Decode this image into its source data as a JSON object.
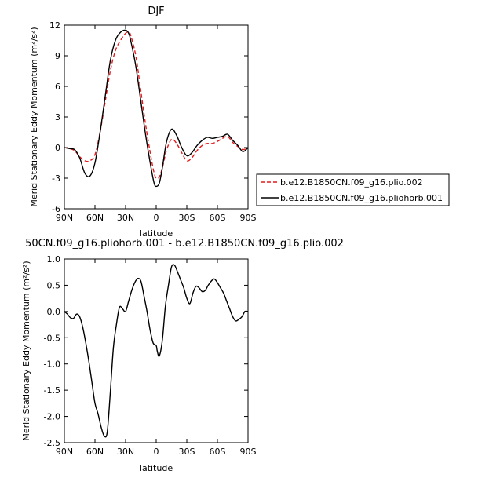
{
  "chart_data": [
    {
      "type": "line",
      "title": "DJF",
      "xlabel": "latitude",
      "ylabel": "Merid Stationary Eddy Momentum (m²/s²)",
      "x_tick_labels": [
        "90N",
        "60N",
        "30N",
        "0",
        "30S",
        "60S",
        "90S"
      ],
      "x_tick_values": [
        90,
        60,
        30,
        0,
        -30,
        -60,
        -90
      ],
      "xlim": [
        90,
        -90
      ],
      "ylim": [
        -6,
        12
      ],
      "y_ticks": [
        -6,
        -3,
        0,
        3,
        6,
        9,
        12
      ],
      "legend_position": "right",
      "series": [
        {
          "name": "b.e12.B1850CN.f09_g16.plio.002",
          "color": "#e41a1c",
          "style": "dashed",
          "x": [
            90,
            85,
            80,
            75,
            70,
            65,
            60,
            55,
            50,
            45,
            40,
            35,
            30,
            27,
            25,
            20,
            15,
            10,
            5,
            2,
            0,
            -3,
            -6,
            -10,
            -15,
            -20,
            -25,
            -30,
            -35,
            -40,
            -45,
            -50,
            -55,
            -60,
            -65,
            -70,
            -75,
            -80,
            -85,
            -90
          ],
          "y": [
            0,
            -0.1,
            -0.3,
            -0.9,
            -1.3,
            -1.3,
            -0.7,
            1.5,
            4.5,
            7.5,
            9.5,
            10.5,
            11.2,
            11.3,
            11.0,
            9.0,
            5.5,
            2.0,
            -1.0,
            -2.5,
            -3.0,
            -2.9,
            -2.0,
            -0.3,
            0.8,
            0.4,
            -0.5,
            -1.3,
            -1.0,
            -0.3,
            0.2,
            0.4,
            0.4,
            0.6,
            0.9,
            1.1,
            0.5,
            0.1,
            -0.2,
            0
          ]
        },
        {
          "name": "b.e12.B1850CN.f09_g16.pliohorb.001",
          "color": "#000000",
          "style": "solid",
          "x": [
            90,
            85,
            80,
            75,
            70,
            65,
            60,
            55,
            50,
            45,
            40,
            35,
            30,
            27,
            25,
            20,
            15,
            10,
            5,
            2,
            0,
            -3,
            -6,
            -10,
            -15,
            -20,
            -25,
            -30,
            -35,
            -40,
            -45,
            -50,
            -55,
            -60,
            -65,
            -70,
            -75,
            -80,
            -85,
            -90
          ],
          "y": [
            0,
            -0.1,
            -0.2,
            -1.0,
            -2.5,
            -2.8,
            -1.5,
            1.5,
            5.0,
            8.5,
            10.5,
            11.3,
            11.5,
            11.2,
            10.5,
            8.0,
            4.5,
            1.0,
            -2.0,
            -3.5,
            -3.8,
            -3.5,
            -2.0,
            0.5,
            1.8,
            1.2,
            0.0,
            -0.8,
            -0.5,
            0.2,
            0.7,
            1.0,
            0.9,
            1.0,
            1.1,
            1.3,
            0.7,
            0.2,
            -0.4,
            0
          ]
        }
      ]
    },
    {
      "type": "line",
      "title": "50CN.f09_g16.pliohorb.001 - b.e12.B1850CN.f09_g16.plio.002",
      "xlabel": "latitude",
      "ylabel": "Merid Stationary Eddy Momentum (m²/s²)",
      "x_tick_labels": [
        "90N",
        "60N",
        "30N",
        "0",
        "30S",
        "60S",
        "90S"
      ],
      "x_tick_values": [
        90,
        60,
        30,
        0,
        -30,
        -60,
        -90
      ],
      "xlim": [
        90,
        -90
      ],
      "ylim": [
        -2.5,
        1.0
      ],
      "y_ticks": [
        -2.5,
        -2.0,
        -1.5,
        -1.0,
        -0.5,
        0.0,
        0.5,
        1.0
      ],
      "series": [
        {
          "color": "#000000",
          "style": "solid",
          "x": [
            90,
            87,
            84,
            81,
            78,
            75,
            72,
            69,
            66,
            63,
            60,
            57,
            54,
            51,
            48,
            45,
            42,
            39,
            36,
            33,
            30,
            27,
            24,
            21,
            18,
            15,
            12,
            9,
            6,
            3,
            0,
            -1,
            -3,
            -6,
            -9,
            -12,
            -15,
            -18,
            -21,
            -24,
            -27,
            -30,
            -33,
            -36,
            -39,
            -42,
            -45,
            -48,
            -51,
            -54,
            -57,
            -60,
            -63,
            -66,
            -69,
            -72,
            -75,
            -78,
            -81,
            -84,
            -87,
            -90
          ],
          "y": [
            0.0,
            -0.05,
            -0.12,
            -0.13,
            -0.05,
            -0.1,
            -0.3,
            -0.6,
            -0.95,
            -1.35,
            -1.75,
            -1.95,
            -2.2,
            -2.37,
            -2.3,
            -1.55,
            -0.7,
            -0.25,
            0.08,
            0.05,
            0.0,
            0.2,
            0.4,
            0.55,
            0.63,
            0.58,
            0.3,
            0.0,
            -0.35,
            -0.6,
            -0.65,
            -0.75,
            -0.85,
            -0.55,
            0.1,
            0.5,
            0.85,
            0.88,
            0.75,
            0.6,
            0.45,
            0.25,
            0.15,
            0.35,
            0.48,
            0.45,
            0.38,
            0.4,
            0.5,
            0.58,
            0.62,
            0.55,
            0.45,
            0.35,
            0.2,
            0.05,
            -0.1,
            -0.18,
            -0.15,
            -0.1,
            0.0,
            0.0
          ]
        }
      ]
    }
  ]
}
